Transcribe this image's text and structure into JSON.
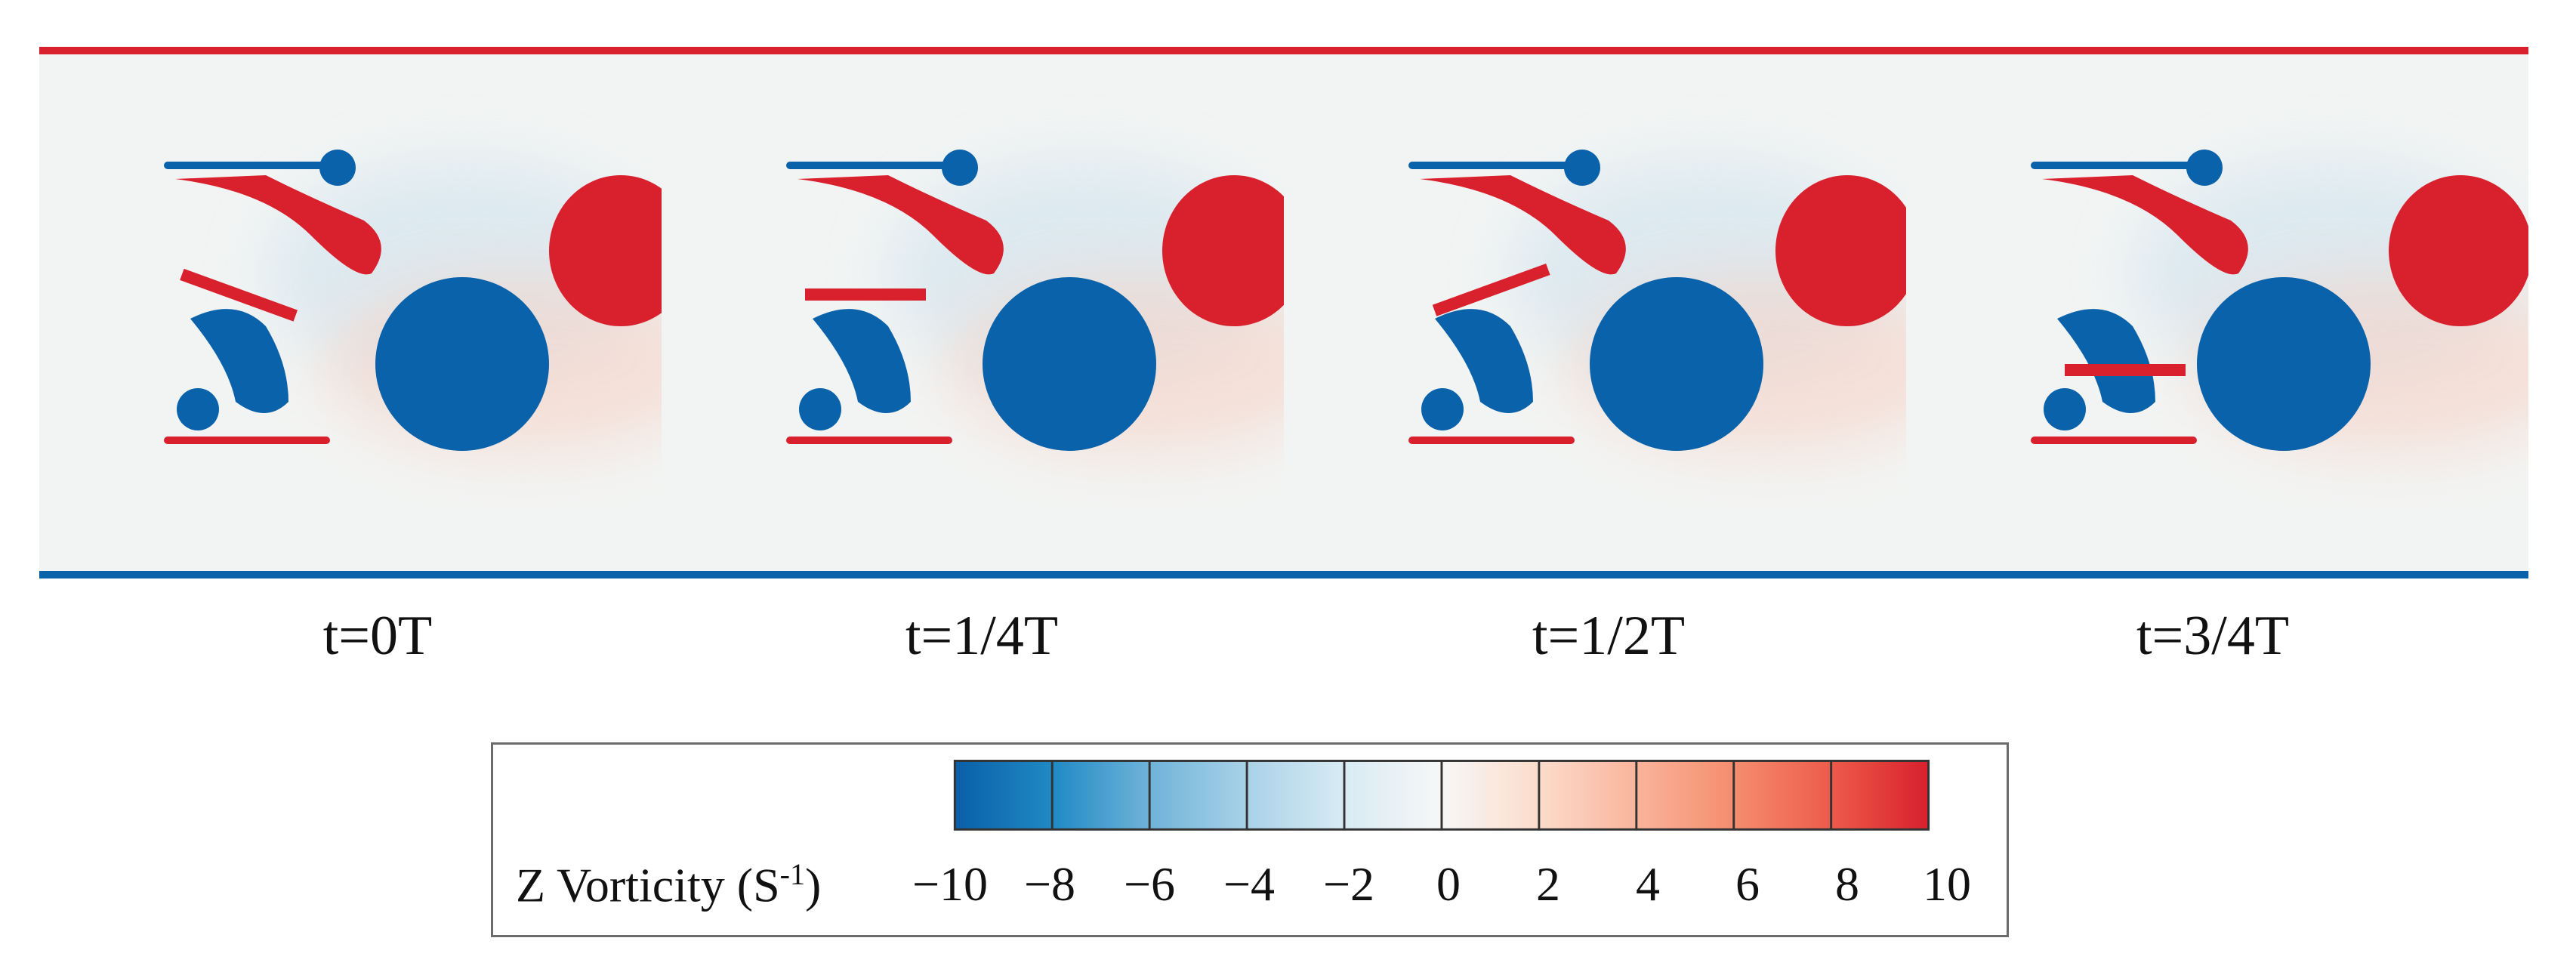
{
  "panels": [
    {
      "label": "t=0T",
      "phase": 0
    },
    {
      "label": "t=1/4T",
      "phase": 1
    },
    {
      "label": "t=1/2T",
      "phase": 2
    },
    {
      "label": "t=3/4T",
      "phase": 3
    }
  ],
  "colorbar": {
    "label_main": "Z Vorticity (S",
    "label_sup": "-1",
    "label_end": ")",
    "ticks": [
      "−10",
      "−8",
      "−6",
      "−4",
      "−2",
      "0",
      "2",
      "4",
      "6",
      "8",
      "10"
    ],
    "range": [
      -10,
      10
    ],
    "colors": [
      "#0a5fa8",
      "#1f8ac4",
      "#6fb3d9",
      "#a9d2e8",
      "#d8ebf4",
      "#f7f7f7",
      "#fcdccb",
      "#f9b49b",
      "#f58d6e",
      "#ed5b4a",
      "#d8202d"
    ]
  },
  "colors": {
    "positive": "#d9202d",
    "negative": "#0a62aa",
    "background": "#f2f4f3"
  }
}
